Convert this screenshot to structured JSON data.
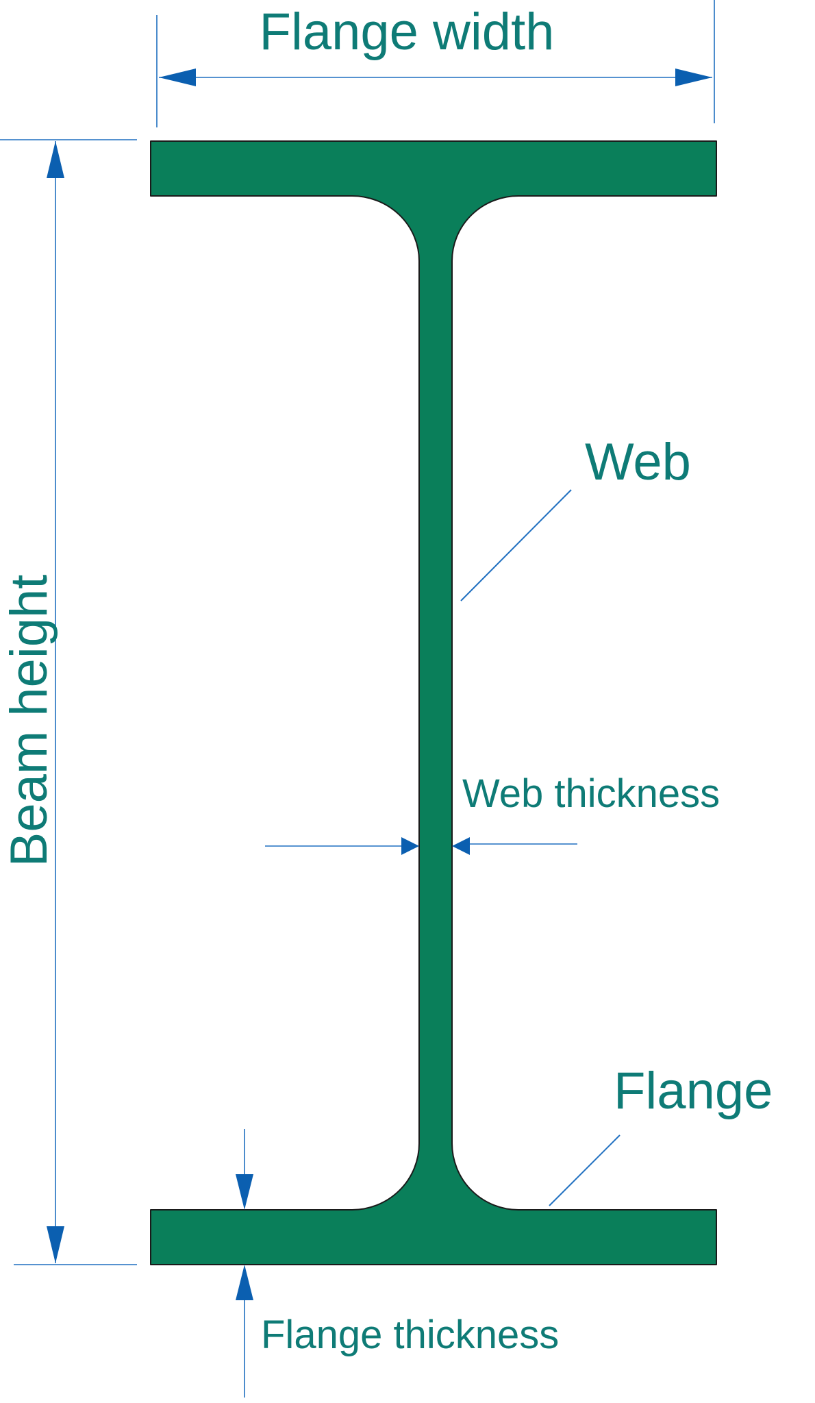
{
  "labels": {
    "flange_width": "Flange width",
    "beam_height": "Beam height",
    "web": "Web",
    "web_thickness": "Web thickness",
    "flange": "Flange",
    "flange_thickness": "Flange thickness"
  },
  "colors": {
    "beam_fill": "#0a7f5a",
    "label_text": "#0e7b76",
    "dimension_line": "#1f6fc0",
    "arrowhead": "#0b5fb0"
  }
}
